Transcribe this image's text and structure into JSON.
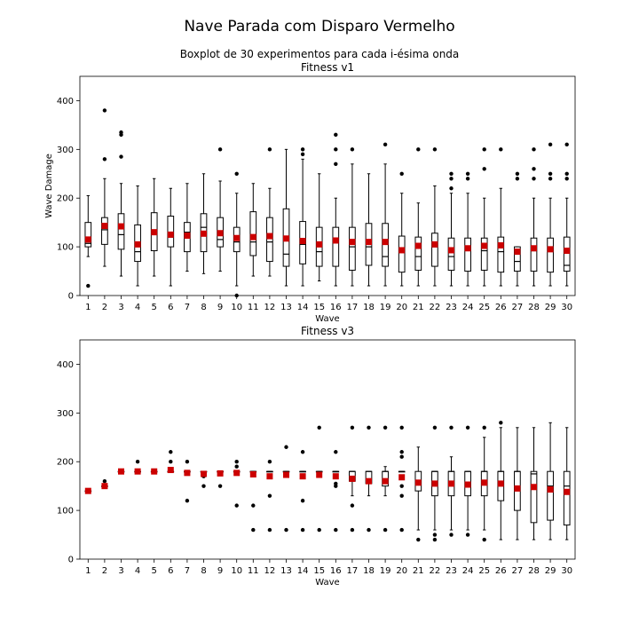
{
  "figure": {
    "title": "Nave Parada com Disparo Vermelho",
    "subtitle": "Boxplot de 30 experimentos para cada i-ésima onda"
  },
  "colors": {
    "box": "#000000",
    "median": "#000000",
    "mean": "#cc0000",
    "outlier": "#000000"
  },
  "chart_data": [
    {
      "type": "boxplot",
      "title": "Fitness v1",
      "xlabel": "Wave",
      "ylabel": "Wave Damage",
      "ylim": [
        0,
        450
      ],
      "yticks": [
        0,
        100,
        200,
        300,
        400
      ],
      "categories": [
        "1",
        "2",
        "3",
        "4",
        "5",
        "6",
        "7",
        "8",
        "9",
        "10",
        "11",
        "12",
        "13",
        "14",
        "15",
        "16",
        "17",
        "18",
        "19",
        "20",
        "21",
        "22",
        "23",
        "24",
        "25",
        "26",
        "27",
        "28",
        "29",
        "30"
      ],
      "boxes": [
        {
          "whislo": 80,
          "q1": 100,
          "med": 107,
          "q3": 150,
          "whishi": 205,
          "mean": 115,
          "fliers": [
            20
          ]
        },
        {
          "whislo": 60,
          "q1": 105,
          "med": 135,
          "q3": 160,
          "whishi": 240,
          "mean": 143,
          "fliers": [
            280,
            380
          ]
        },
        {
          "whislo": 40,
          "q1": 95,
          "med": 125,
          "q3": 168,
          "whishi": 230,
          "mean": 142,
          "fliers": [
            285,
            330,
            335
          ]
        },
        {
          "whislo": 20,
          "q1": 70,
          "med": 90,
          "q3": 145,
          "whishi": 225,
          "mean": 105,
          "fliers": []
        },
        {
          "whislo": 40,
          "q1": 92,
          "med": 125,
          "q3": 170,
          "whishi": 240,
          "mean": 130,
          "fliers": []
        },
        {
          "whislo": 20,
          "q1": 100,
          "med": 120,
          "q3": 163,
          "whishi": 220,
          "mean": 125,
          "fliers": []
        },
        {
          "whislo": 50,
          "q1": 90,
          "med": 130,
          "q3": 150,
          "whishi": 230,
          "mean": 123,
          "fliers": []
        },
        {
          "whislo": 45,
          "q1": 90,
          "med": 140,
          "q3": 168,
          "whishi": 250,
          "mean": 127,
          "fliers": []
        },
        {
          "whislo": 50,
          "q1": 100,
          "med": 115,
          "q3": 160,
          "whishi": 235,
          "mean": 128,
          "fliers": [
            300
          ]
        },
        {
          "whislo": 20,
          "q1": 90,
          "med": 110,
          "q3": 140,
          "whishi": 210,
          "mean": 118,
          "fliers": [
            0,
            250
          ]
        },
        {
          "whislo": 40,
          "q1": 82,
          "med": 110,
          "q3": 172,
          "whishi": 230,
          "mean": 120,
          "fliers": []
        },
        {
          "whislo": 40,
          "q1": 70,
          "med": 110,
          "q3": 160,
          "whishi": 220,
          "mean": 122,
          "fliers": [
            300
          ]
        },
        {
          "whislo": 20,
          "q1": 60,
          "med": 85,
          "q3": 178,
          "whishi": 300,
          "mean": 117,
          "fliers": []
        },
        {
          "whislo": 20,
          "q1": 65,
          "med": 105,
          "q3": 152,
          "whishi": 280,
          "mean": 112,
          "fliers": [
            290,
            300
          ]
        },
        {
          "whislo": 30,
          "q1": 60,
          "med": 90,
          "q3": 140,
          "whishi": 250,
          "mean": 105,
          "fliers": []
        },
        {
          "whislo": 20,
          "q1": 60,
          "med": 110,
          "q3": 140,
          "whishi": 200,
          "mean": 113,
          "fliers": [
            270,
            300,
            330
          ]
        },
        {
          "whislo": 20,
          "q1": 52,
          "med": 100,
          "q3": 140,
          "whishi": 270,
          "mean": 110,
          "fliers": [
            300
          ]
        },
        {
          "whislo": 20,
          "q1": 62,
          "med": 100,
          "q3": 148,
          "whishi": 250,
          "mean": 110,
          "fliers": []
        },
        {
          "whislo": 20,
          "q1": 60,
          "med": 80,
          "q3": 148,
          "whishi": 270,
          "mean": 110,
          "fliers": [
            310
          ]
        },
        {
          "whislo": 20,
          "q1": 48,
          "med": 90,
          "q3": 122,
          "whishi": 210,
          "mean": 93,
          "fliers": [
            250
          ]
        },
        {
          "whislo": 20,
          "q1": 52,
          "med": 80,
          "q3": 120,
          "whishi": 190,
          "mean": 102,
          "fliers": [
            300
          ]
        },
        {
          "whislo": 20,
          "q1": 60,
          "med": 100,
          "q3": 128,
          "whishi": 225,
          "mean": 105,
          "fliers": [
            300
          ]
        },
        {
          "whislo": 20,
          "q1": 52,
          "med": 80,
          "q3": 118,
          "whishi": 210,
          "mean": 93,
          "fliers": [
            220,
            240,
            250
          ]
        },
        {
          "whislo": 20,
          "q1": 50,
          "med": 100,
          "q3": 118,
          "whishi": 210,
          "mean": 97,
          "fliers": [
            240,
            250
          ]
        },
        {
          "whislo": 20,
          "q1": 52,
          "med": 92,
          "q3": 118,
          "whishi": 200,
          "mean": 102,
          "fliers": [
            260,
            300
          ]
        },
        {
          "whislo": 20,
          "q1": 48,
          "med": 90,
          "q3": 120,
          "whishi": 220,
          "mean": 103,
          "fliers": [
            300
          ]
        },
        {
          "whislo": 20,
          "q1": 50,
          "med": 70,
          "q3": 100,
          "whishi": 100,
          "mean": 90,
          "fliers": [
            240,
            250
          ]
        },
        {
          "whislo": 20,
          "q1": 50,
          "med": 92,
          "q3": 118,
          "whishi": 200,
          "mean": 97,
          "fliers": [
            240,
            260,
            300
          ]
        },
        {
          "whislo": 20,
          "q1": 48,
          "med": 92,
          "q3": 118,
          "whishi": 200,
          "mean": 95,
          "fliers": [
            240,
            250,
            310
          ]
        },
        {
          "whislo": 20,
          "q1": 50,
          "med": 62,
          "q3": 120,
          "whishi": 200,
          "mean": 92,
          "fliers": [
            240,
            250,
            310
          ]
        }
      ]
    },
    {
      "type": "boxplot",
      "title": "Fitness v3",
      "xlabel": "Wave",
      "ylabel": "",
      "ylim": [
        0,
        450
      ],
      "yticks": [
        0,
        100,
        200,
        300,
        400
      ],
      "categories": [
        "1",
        "2",
        "3",
        "4",
        "5",
        "6",
        "7",
        "8",
        "9",
        "10",
        "11",
        "12",
        "13",
        "14",
        "15",
        "16",
        "17",
        "18",
        "19",
        "20",
        "21",
        "22",
        "23",
        "24",
        "25",
        "26",
        "27",
        "28",
        "29",
        "30"
      ],
      "boxes": [
        {
          "whislo": 140,
          "q1": 140,
          "med": 140,
          "q3": 140,
          "whishi": 140,
          "mean": 140,
          "fliers": []
        },
        {
          "whislo": 150,
          "q1": 150,
          "med": 150,
          "q3": 150,
          "whishi": 150,
          "mean": 150,
          "fliers": [
            160
          ]
        },
        {
          "whislo": 180,
          "q1": 180,
          "med": 180,
          "q3": 180,
          "whishi": 180,
          "mean": 180,
          "fliers": []
        },
        {
          "whislo": 180,
          "q1": 180,
          "med": 180,
          "q3": 180,
          "whishi": 180,
          "mean": 180,
          "fliers": [
            200
          ]
        },
        {
          "whislo": 180,
          "q1": 180,
          "med": 180,
          "q3": 180,
          "whishi": 180,
          "mean": 180,
          "fliers": []
        },
        {
          "whislo": 180,
          "q1": 180,
          "med": 180,
          "q3": 180,
          "whishi": 180,
          "mean": 183,
          "fliers": [
            200,
            220
          ]
        },
        {
          "whislo": 180,
          "q1": 180,
          "med": 180,
          "q3": 180,
          "whishi": 180,
          "mean": 177,
          "fliers": [
            120,
            200
          ]
        },
        {
          "whislo": 180,
          "q1": 180,
          "med": 180,
          "q3": 180,
          "whishi": 180,
          "mean": 175,
          "fliers": [
            150,
            170
          ]
        },
        {
          "whislo": 180,
          "q1": 180,
          "med": 180,
          "q3": 180,
          "whishi": 180,
          "mean": 176,
          "fliers": [
            150
          ]
        },
        {
          "whislo": 180,
          "q1": 180,
          "med": 180,
          "q3": 180,
          "whishi": 180,
          "mean": 177,
          "fliers": [
            110,
            190,
            200
          ]
        },
        {
          "whislo": 180,
          "q1": 180,
          "med": 180,
          "q3": 180,
          "whishi": 180,
          "mean": 174,
          "fliers": [
            60,
            110
          ]
        },
        {
          "whislo": 180,
          "q1": 180,
          "med": 180,
          "q3": 180,
          "whishi": 180,
          "mean": 170,
          "fliers": [
            60,
            130,
            200
          ]
        },
        {
          "whislo": 180,
          "q1": 180,
          "med": 180,
          "q3": 180,
          "whishi": 180,
          "mean": 173,
          "fliers": [
            60,
            230
          ]
        },
        {
          "whislo": 180,
          "q1": 180,
          "med": 180,
          "q3": 180,
          "whishi": 180,
          "mean": 170,
          "fliers": [
            60,
            120,
            220
          ]
        },
        {
          "whislo": 180,
          "q1": 180,
          "med": 180,
          "q3": 180,
          "whishi": 180,
          "mean": 173,
          "fliers": [
            60,
            270
          ]
        },
        {
          "whislo": 180,
          "q1": 180,
          "med": 180,
          "q3": 180,
          "whishi": 180,
          "mean": 170,
          "fliers": [
            60,
            150,
            155,
            220
          ]
        },
        {
          "whislo": 130,
          "q1": 160,
          "med": 180,
          "q3": 180,
          "whishi": 180,
          "mean": 165,
          "fliers": [
            60,
            110,
            270
          ]
        },
        {
          "whislo": 130,
          "q1": 155,
          "med": 180,
          "q3": 180,
          "whishi": 180,
          "mean": 160,
          "fliers": [
            60,
            270
          ]
        },
        {
          "whislo": 130,
          "q1": 150,
          "med": 180,
          "q3": 180,
          "whishi": 190,
          "mean": 160,
          "fliers": [
            60,
            270
          ]
        },
        {
          "whislo": 180,
          "q1": 180,
          "med": 180,
          "q3": 180,
          "whishi": 180,
          "mean": 168,
          "fliers": [
            60,
            130,
            150,
            210,
            220,
            270
          ]
        },
        {
          "whislo": 60,
          "q1": 140,
          "med": 160,
          "q3": 180,
          "whishi": 230,
          "mean": 157,
          "fliers": [
            40
          ]
        },
        {
          "whislo": 60,
          "q1": 130,
          "med": 180,
          "q3": 180,
          "whishi": 180,
          "mean": 155,
          "fliers": [
            40,
            50,
            270
          ]
        },
        {
          "whislo": 60,
          "q1": 130,
          "med": 180,
          "q3": 180,
          "whishi": 210,
          "mean": 155,
          "fliers": [
            50,
            270
          ]
        },
        {
          "whislo": 60,
          "q1": 130,
          "med": 180,
          "q3": 180,
          "whishi": 180,
          "mean": 153,
          "fliers": [
            50,
            270
          ]
        },
        {
          "whislo": 60,
          "q1": 130,
          "med": 180,
          "q3": 180,
          "whishi": 250,
          "mean": 157,
          "fliers": [
            40,
            270
          ]
        },
        {
          "whislo": 40,
          "q1": 120,
          "med": 180,
          "q3": 180,
          "whishi": 270,
          "mean": 155,
          "fliers": [
            280
          ]
        },
        {
          "whislo": 40,
          "q1": 100,
          "med": 180,
          "q3": 180,
          "whishi": 270,
          "mean": 145,
          "fliers": []
        },
        {
          "whislo": 40,
          "q1": 75,
          "med": 175,
          "q3": 180,
          "whishi": 270,
          "mean": 148,
          "fliers": []
        },
        {
          "whislo": 40,
          "q1": 80,
          "med": 150,
          "q3": 180,
          "whishi": 280,
          "mean": 143,
          "fliers": []
        },
        {
          "whislo": 40,
          "q1": 70,
          "med": 150,
          "q3": 180,
          "whishi": 270,
          "mean": 138,
          "fliers": []
        }
      ]
    }
  ]
}
